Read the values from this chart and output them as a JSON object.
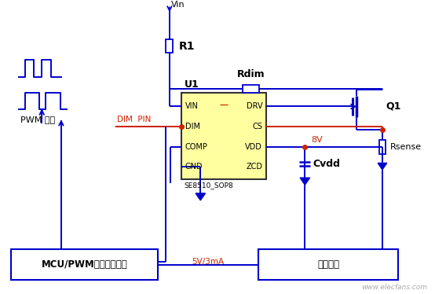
{
  "bg_color": "#ffffff",
  "line_color": "#0000cc",
  "red_color": "#cc2200",
  "ic_fill": "#ffffa0",
  "ic_border": "#444444",
  "text_color": "#000000",
  "figsize": [
    5.54,
    3.74
  ],
  "dpi": 100,
  "ic_pins_left": [
    "VIN",
    "DIM",
    "COMP",
    "GND"
  ],
  "ic_pins_right": [
    "DRV",
    "CS",
    "VDD",
    "ZCD"
  ],
  "ic_label": "U1",
  "ic_sublabel": "SE8510_SOP8",
  "bottom_left_box": "MCU/PWM信号产生电路",
  "bottom_right_box": "稳压模块",
  "pwm_label": "PWM 信号",
  "dim_pin_label": "DIM  PIN",
  "vin_label": "Vin",
  "r1_label": "R1",
  "rdim_label": "Rdim",
  "q1_label": "Q1",
  "rsense_label": "Rsense",
  "cvdd_label": "Cvdd",
  "label_8v": "8V",
  "label_5v3ma": "5V/3mA",
  "watermark": "www.elecfans.com"
}
